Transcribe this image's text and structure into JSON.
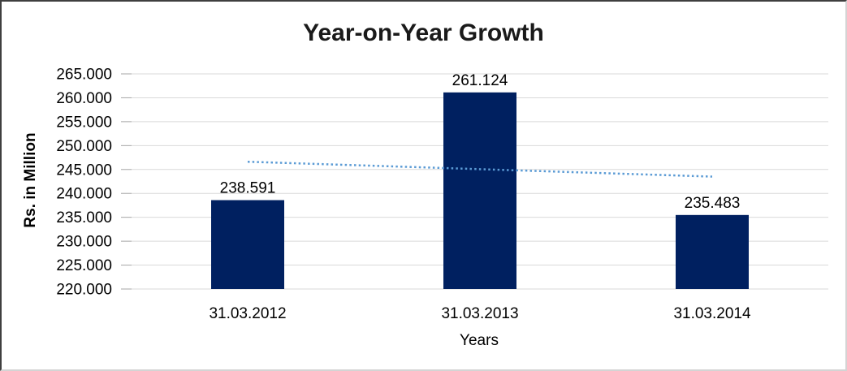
{
  "chart_data": {
    "type": "bar",
    "title": "Year-on-Year Growth",
    "xlabel": "Years",
    "ylabel": "Rs. in Million",
    "categories": [
      "31.03.2012",
      "31.03.2013",
      "31.03.2014"
    ],
    "values": [
      238.591,
      261.124,
      235.483
    ],
    "value_labels": [
      "238.591",
      "261.124",
      "235.483"
    ],
    "ylim": [
      220,
      265
    ],
    "ytick_step": 5,
    "ytick_labels": [
      "220.000",
      "225.000",
      "230.000",
      "235.000",
      "240.000",
      "245.000",
      "250.000",
      "255.000",
      "260.000",
      "265.000"
    ],
    "grid": true,
    "legend": "none",
    "colors": {
      "bar": "#002060",
      "gridline": "#d9d9d9",
      "tick": "#a6a6a6",
      "text": "#000000",
      "trendline": "#5b9bd5"
    },
    "trendline": {
      "type": "linear",
      "style": "dotted",
      "start_value": 246.62,
      "end_value": 243.51
    }
  }
}
